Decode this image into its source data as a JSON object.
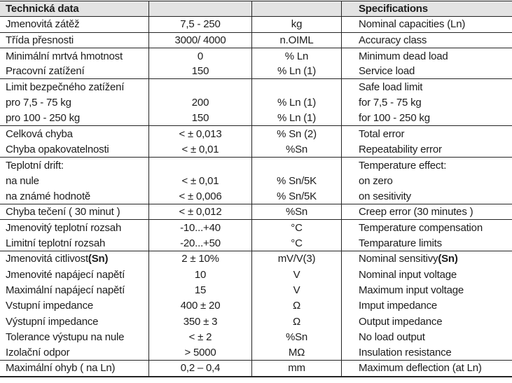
{
  "colors": {
    "header_background": "#e3e3e3",
    "border": "#242424",
    "text": "#1c1c1c",
    "page_background": "#ffffff"
  },
  "table": {
    "header": {
      "czech": "Technická data",
      "value": "",
      "unit": "",
      "english": "Specifications"
    },
    "rows": [
      {
        "czech": "Jmenovitá zátěž",
        "value": "7,5 - 250",
        "unit": "kg",
        "english": "Nominal capacities (Ln)",
        "divider": true
      },
      {
        "czech": "Třída přesnosti",
        "value": "3000/ 4000",
        "unit": "n.OIML",
        "english": "Accuracy class",
        "divider": true
      },
      {
        "czech": "Minimální mrtvá hmotnost",
        "value": "0",
        "unit": "% Ln",
        "english": "Minimum dead load",
        "divider": false
      },
      {
        "czech": "Pracovní zatížení",
        "value": "150",
        "unit": "% Ln (1)",
        "english": "Service load",
        "divider": true
      },
      {
        "czech": "Limit bezpečného zatížení",
        "value": "",
        "unit": "",
        "english": "Safe load limit",
        "divider": false
      },
      {
        "czech": "pro 7,5 - 75 kg",
        "value": "200",
        "unit": "% Ln (1)",
        "english": "for 7,5 - 75 kg",
        "divider": false
      },
      {
        "czech": "pro 100 - 250 kg",
        "value": "150",
        "unit": "% Ln (1)",
        "english": "for 100 - 250 kg",
        "divider": true
      },
      {
        "czech": "Celková chyba",
        "value": "< ± 0,013",
        "unit": "% Sn (2)",
        "english": "Total error",
        "divider": false
      },
      {
        "czech": "Chyba opakovatelnosti",
        "value": "< ± 0,01",
        "unit": "%Sn",
        "english": "Repeatability error",
        "divider": true
      },
      {
        "czech": "Teplotní drift:",
        "value": "",
        "unit": "",
        "english": "Temperature effect:",
        "divider": false
      },
      {
        "czech": "na nule",
        "value": "< ± 0,01",
        "unit": "% Sn/5K",
        "english": "on zero",
        "divider": false
      },
      {
        "czech": "na známé hodnotě",
        "value": "< ± 0,006",
        "unit": "% Sn/5K",
        "english": "on sesitivity",
        "divider": true
      },
      {
        "czech": "Chyba tečení ( 30 minut )",
        "value": "< ± 0,012",
        "unit": "%Sn",
        "english": "Creep error (30 minutes )",
        "divider": true
      },
      {
        "czech": "Jmenovitý teplotní rozsah",
        "value": "-10...+40",
        "unit": "°C",
        "english": "Temperature compensation",
        "divider": false
      },
      {
        "czech": "Limitní teplotní rozsah",
        "value": "-20...+50",
        "unit": "°C",
        "english": "Temparature limits",
        "divider": true
      },
      {
        "czech": "Jmenovitá citlivost ",
        "czech_bold": "(Sn)",
        "value": "2 ± 10%",
        "unit": "mV/V(3)",
        "english": "Nominal sensitivy ",
        "english_bold": "(Sn)",
        "divider": false
      },
      {
        "czech": "Jmenovité napájecí napětí",
        "value": "10",
        "unit": "V",
        "english": "Nominal input voltage",
        "divider": false
      },
      {
        "czech": "Maximální napájecí napětí",
        "value": "15",
        "unit": "V",
        "english": "Maximum input voltage",
        "divider": false
      },
      {
        "czech": "Vstupní impedance",
        "value": "400 ± 20",
        "unit": "Ω",
        "english": "Imput impedance",
        "divider": false
      },
      {
        "czech": "Výstupní impedance",
        "value": "350 ± 3",
        "unit": "Ω",
        "english": "Output impedance",
        "divider": false
      },
      {
        "czech": "Tolerance výstupu na nule",
        "value": "< ± 2",
        "unit": "%Sn",
        "english": "No load output",
        "divider": false
      },
      {
        "czech": "Izolační odpor",
        "value": "> 5000",
        "unit": "MΩ",
        "english": "Insulation resistance",
        "divider": true
      },
      {
        "czech": "Maximální ohyb ( na Ln)",
        "value": "0,2 – 0,4",
        "unit": "mm",
        "english": "Maximum deflection (at Ln)",
        "divider": false
      }
    ]
  }
}
